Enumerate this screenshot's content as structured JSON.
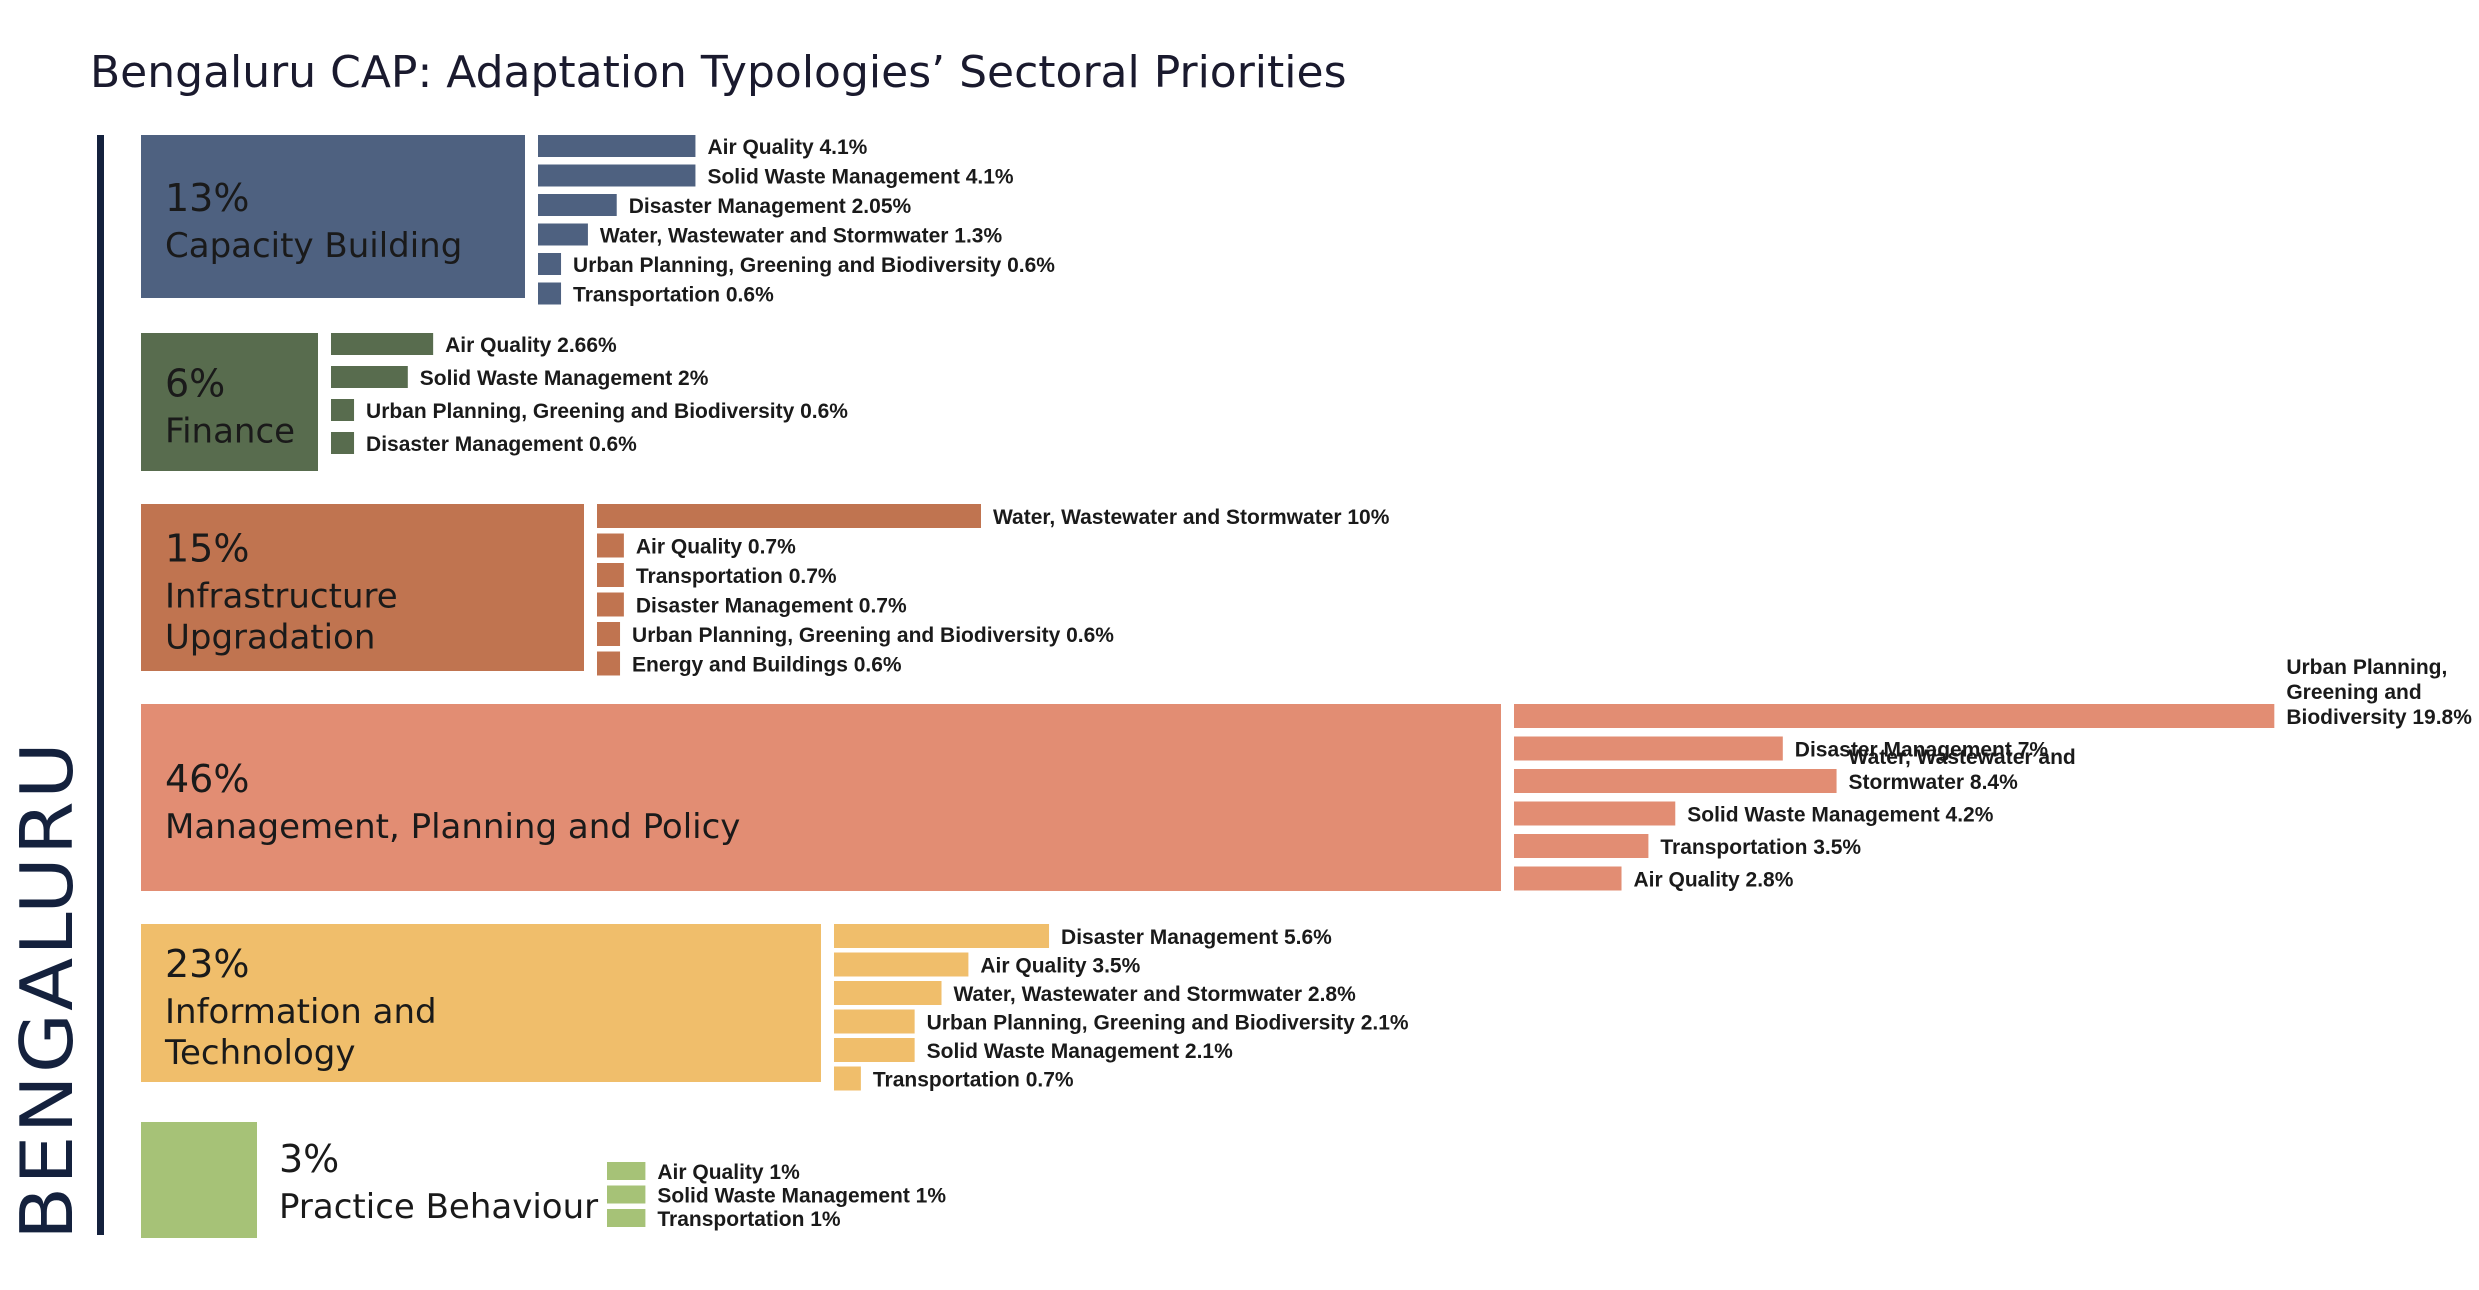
{
  "chart_data": {
    "type": "bar",
    "title": "Bengaluru CAP: Adaptation Typologies’ Sectoral Priorities",
    "side_label": "BENGALURU",
    "unit": "%",
    "categories": [
      {
        "pct": "13%",
        "share": 13,
        "name_lines": [
          "Capacity Building"
        ],
        "color": "#4e6180",
        "bars": [
          {
            "lines": [
              "Air Quality 4.1%"
            ],
            "value": 4.1
          },
          {
            "lines": [
              "Solid Waste Management 4.1%"
            ],
            "value": 4.1
          },
          {
            "lines": [
              "Disaster Management 2.05%"
            ],
            "value": 2.05
          },
          {
            "lines": [
              "Water, Wastewater and Stormwater 1.3%"
            ],
            "value": 1.3
          },
          {
            "lines": [
              "Urban Planning, Greening and Biodiversity 0.6%"
            ],
            "value": 0.6
          },
          {
            "lines": [
              "Transportation 0.6%"
            ],
            "value": 0.6
          }
        ]
      },
      {
        "pct": "6%",
        "share": 6,
        "name_lines": [
          "Finance"
        ],
        "color": "#586c4e",
        "bars": [
          {
            "lines": [
              "Air Quality 2.66%"
            ],
            "value": 2.66
          },
          {
            "lines": [
              "Solid Waste Management 2%"
            ],
            "value": 2
          },
          {
            "lines": [
              "Urban Planning, Greening and Biodiversity 0.6%"
            ],
            "value": 0.6
          },
          {
            "lines": [
              "Disaster Management 0.6%"
            ],
            "value": 0.6
          }
        ]
      },
      {
        "pct": "15%",
        "share": 15,
        "name_lines": [
          "Infrastructure",
          "Upgradation"
        ],
        "color": "#c07450",
        "bars": [
          {
            "lines": [
              "Water, Wastewater and Stormwater 10%"
            ],
            "value": 10
          },
          {
            "lines": [
              "Air Quality 0.7%"
            ],
            "value": 0.7
          },
          {
            "lines": [
              "Transportation 0.7%"
            ],
            "value": 0.7
          },
          {
            "lines": [
              "Disaster Management 0.7%"
            ],
            "value": 0.7
          },
          {
            "lines": [
              "Urban Planning, Greening and Biodiversity 0.6%"
            ],
            "value": 0.6
          },
          {
            "lines": [
              "Energy and Buildings 0.6%"
            ],
            "value": 0.6
          }
        ]
      },
      {
        "pct": "46%",
        "share": 46,
        "name_lines": [
          "Management, Planning and Policy"
        ],
        "color": "#e28d73",
        "bars": [
          {
            "lines": [
              "Urban Planning,",
              "Greening and",
              "Biodiversity 19.8%"
            ],
            "value": 19.8
          },
          {
            "lines": [
              "Disaster Management 7%"
            ],
            "value": 7
          },
          {
            "lines": [
              "Water, Wastewater and",
              "Stormwater 8.4%"
            ],
            "value": 8.4
          },
          {
            "lines": [
              "Solid Waste Management 4.2%"
            ],
            "value": 4.2
          },
          {
            "lines": [
              "Transportation 3.5%"
            ],
            "value": 3.5
          },
          {
            "lines": [
              "Air Quality 2.8%"
            ],
            "value": 2.8
          }
        ]
      },
      {
        "pct": "23%",
        "share": 23,
        "name_lines": [
          "Information and",
          "Technology"
        ],
        "color": "#f0be6b",
        "bars": [
          {
            "lines": [
              "Disaster Management 5.6%"
            ],
            "value": 5.6
          },
          {
            "lines": [
              "Air Quality 3.5%"
            ],
            "value": 3.5
          },
          {
            "lines": [
              "Water, Wastewater and Stormwater 2.8%"
            ],
            "value": 2.8
          },
          {
            "lines": [
              "Urban Planning, Greening and Biodiversity 2.1%"
            ],
            "value": 2.1
          },
          {
            "lines": [
              "Solid Waste Management 2.1%"
            ],
            "value": 2.1
          },
          {
            "lines": [
              "Transportation 0.7%"
            ],
            "value": 0.7
          }
        ]
      },
      {
        "pct": "3%",
        "share": 3,
        "name_lines": [
          "Practice Behaviour"
        ],
        "color": "#a6c277",
        "bars": [
          {
            "lines": [
              "Air Quality  1%"
            ],
            "value": 1
          },
          {
            "lines": [
              "Solid Waste Management 1%"
            ],
            "value": 1
          },
          {
            "lines": [
              "Transportation 1%"
            ],
            "value": 1
          }
        ]
      }
    ]
  }
}
